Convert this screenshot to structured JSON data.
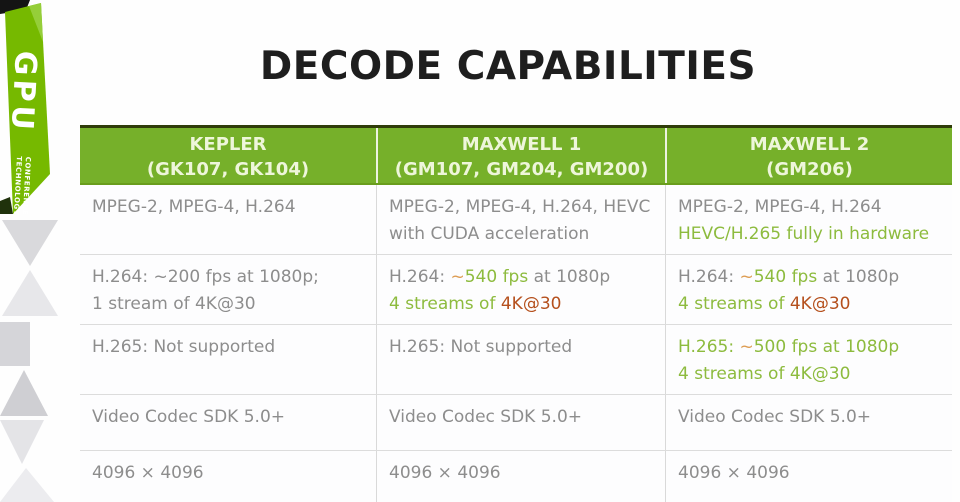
{
  "page": {
    "title": "DECODE CAPABILITIES"
  },
  "ribbon": {
    "brand": "GPU",
    "sub1": "TECHNOLOGY",
    "sub2": "CONFERENCE"
  },
  "colors": {
    "nv-green": "#76b900",
    "header-green": "#76b02a",
    "header-text": "#eef6da",
    "txt-gray": "#8d8d8d",
    "txt-green": "#8dbb3e",
    "txt-orange": "#dd9d54",
    "txt-rust": "#b5501d"
  },
  "table": {
    "columns": [
      {
        "name": "KEPLER",
        "sub": "(GK107, GK104)"
      },
      {
        "name": "MAXWELL 1",
        "sub": "(GM107, GM204, GM200)"
      },
      {
        "name": "MAXWELL 2",
        "sub": "(GM206)"
      }
    ],
    "rows": [
      {
        "cells": [
          {
            "lines": [
              [
                {
                  "text": "MPEG-2, MPEG-4, H.264",
                  "style": "gray"
                }
              ]
            ]
          },
          {
            "lines": [
              [
                {
                  "text": "MPEG-2, MPEG-4, H.264, HEVC",
                  "style": "gray"
                }
              ],
              [
                {
                  "text": "with CUDA acceleration",
                  "style": "gray"
                }
              ]
            ]
          },
          {
            "lines": [
              [
                {
                  "text": "MPEG-2, MPEG-4, H.264",
                  "style": "gray"
                }
              ],
              [
                {
                  "text": "HEVC/H.265 fully in hardware",
                  "style": "green"
                }
              ]
            ]
          }
        ]
      },
      {
        "cells": [
          {
            "lines": [
              [
                {
                  "text": "H.264: ~200 fps at 1080p;",
                  "style": "gray"
                }
              ],
              [
                {
                  "text": "1 stream of 4K@30",
                  "style": "gray"
                }
              ]
            ]
          },
          {
            "lines": [
              [
                {
                  "text": "H.264: ",
                  "style": "gray"
                },
                {
                  "text": "~",
                  "style": "orange"
                },
                {
                  "text": "540 fps",
                  "style": "green"
                },
                {
                  "text": " at 1080p",
                  "style": "gray"
                }
              ],
              [
                {
                  "text": "4 streams of ",
                  "style": "green"
                },
                {
                  "text": "4K@30",
                  "style": "rust"
                }
              ]
            ]
          },
          {
            "lines": [
              [
                {
                  "text": "H.264: ",
                  "style": "gray"
                },
                {
                  "text": "~",
                  "style": "orange"
                },
                {
                  "text": "540 fps",
                  "style": "green"
                },
                {
                  "text": " at 1080p",
                  "style": "gray"
                }
              ],
              [
                {
                  "text": "4 streams of ",
                  "style": "green"
                },
                {
                  "text": "4K@30",
                  "style": "rust"
                }
              ]
            ]
          }
        ]
      },
      {
        "cells": [
          {
            "lines": [
              [
                {
                  "text": "H.265: Not supported",
                  "style": "gray"
                }
              ]
            ]
          },
          {
            "lines": [
              [
                {
                  "text": "H.265: Not supported",
                  "style": "gray"
                }
              ]
            ]
          },
          {
            "lines": [
              [
                {
                  "text": "H.265: ",
                  "style": "green"
                },
                {
                  "text": "~",
                  "style": "orange"
                },
                {
                  "text": "500 fps at 1080p",
                  "style": "green"
                }
              ],
              [
                {
                  "text": "4 streams of 4K@30",
                  "style": "green"
                }
              ]
            ]
          }
        ]
      },
      {
        "cells": [
          {
            "lines": [
              [
                {
                  "text": "Video Codec SDK 5.0+",
                  "style": "gray"
                }
              ]
            ]
          },
          {
            "lines": [
              [
                {
                  "text": "Video Codec SDK 5.0+",
                  "style": "gray"
                }
              ]
            ]
          },
          {
            "lines": [
              [
                {
                  "text": "Video Codec SDK 5.0+",
                  "style": "gray"
                }
              ]
            ]
          }
        ]
      },
      {
        "cells": [
          {
            "lines": [
              [
                {
                  "text": "4096 × 4096",
                  "style": "gray"
                }
              ]
            ]
          },
          {
            "lines": [
              [
                {
                  "text": "4096 × 4096",
                  "style": "gray"
                }
              ]
            ]
          },
          {
            "lines": [
              [
                {
                  "text": "4096 × 4096",
                  "style": "gray"
                }
              ]
            ]
          }
        ]
      }
    ]
  }
}
